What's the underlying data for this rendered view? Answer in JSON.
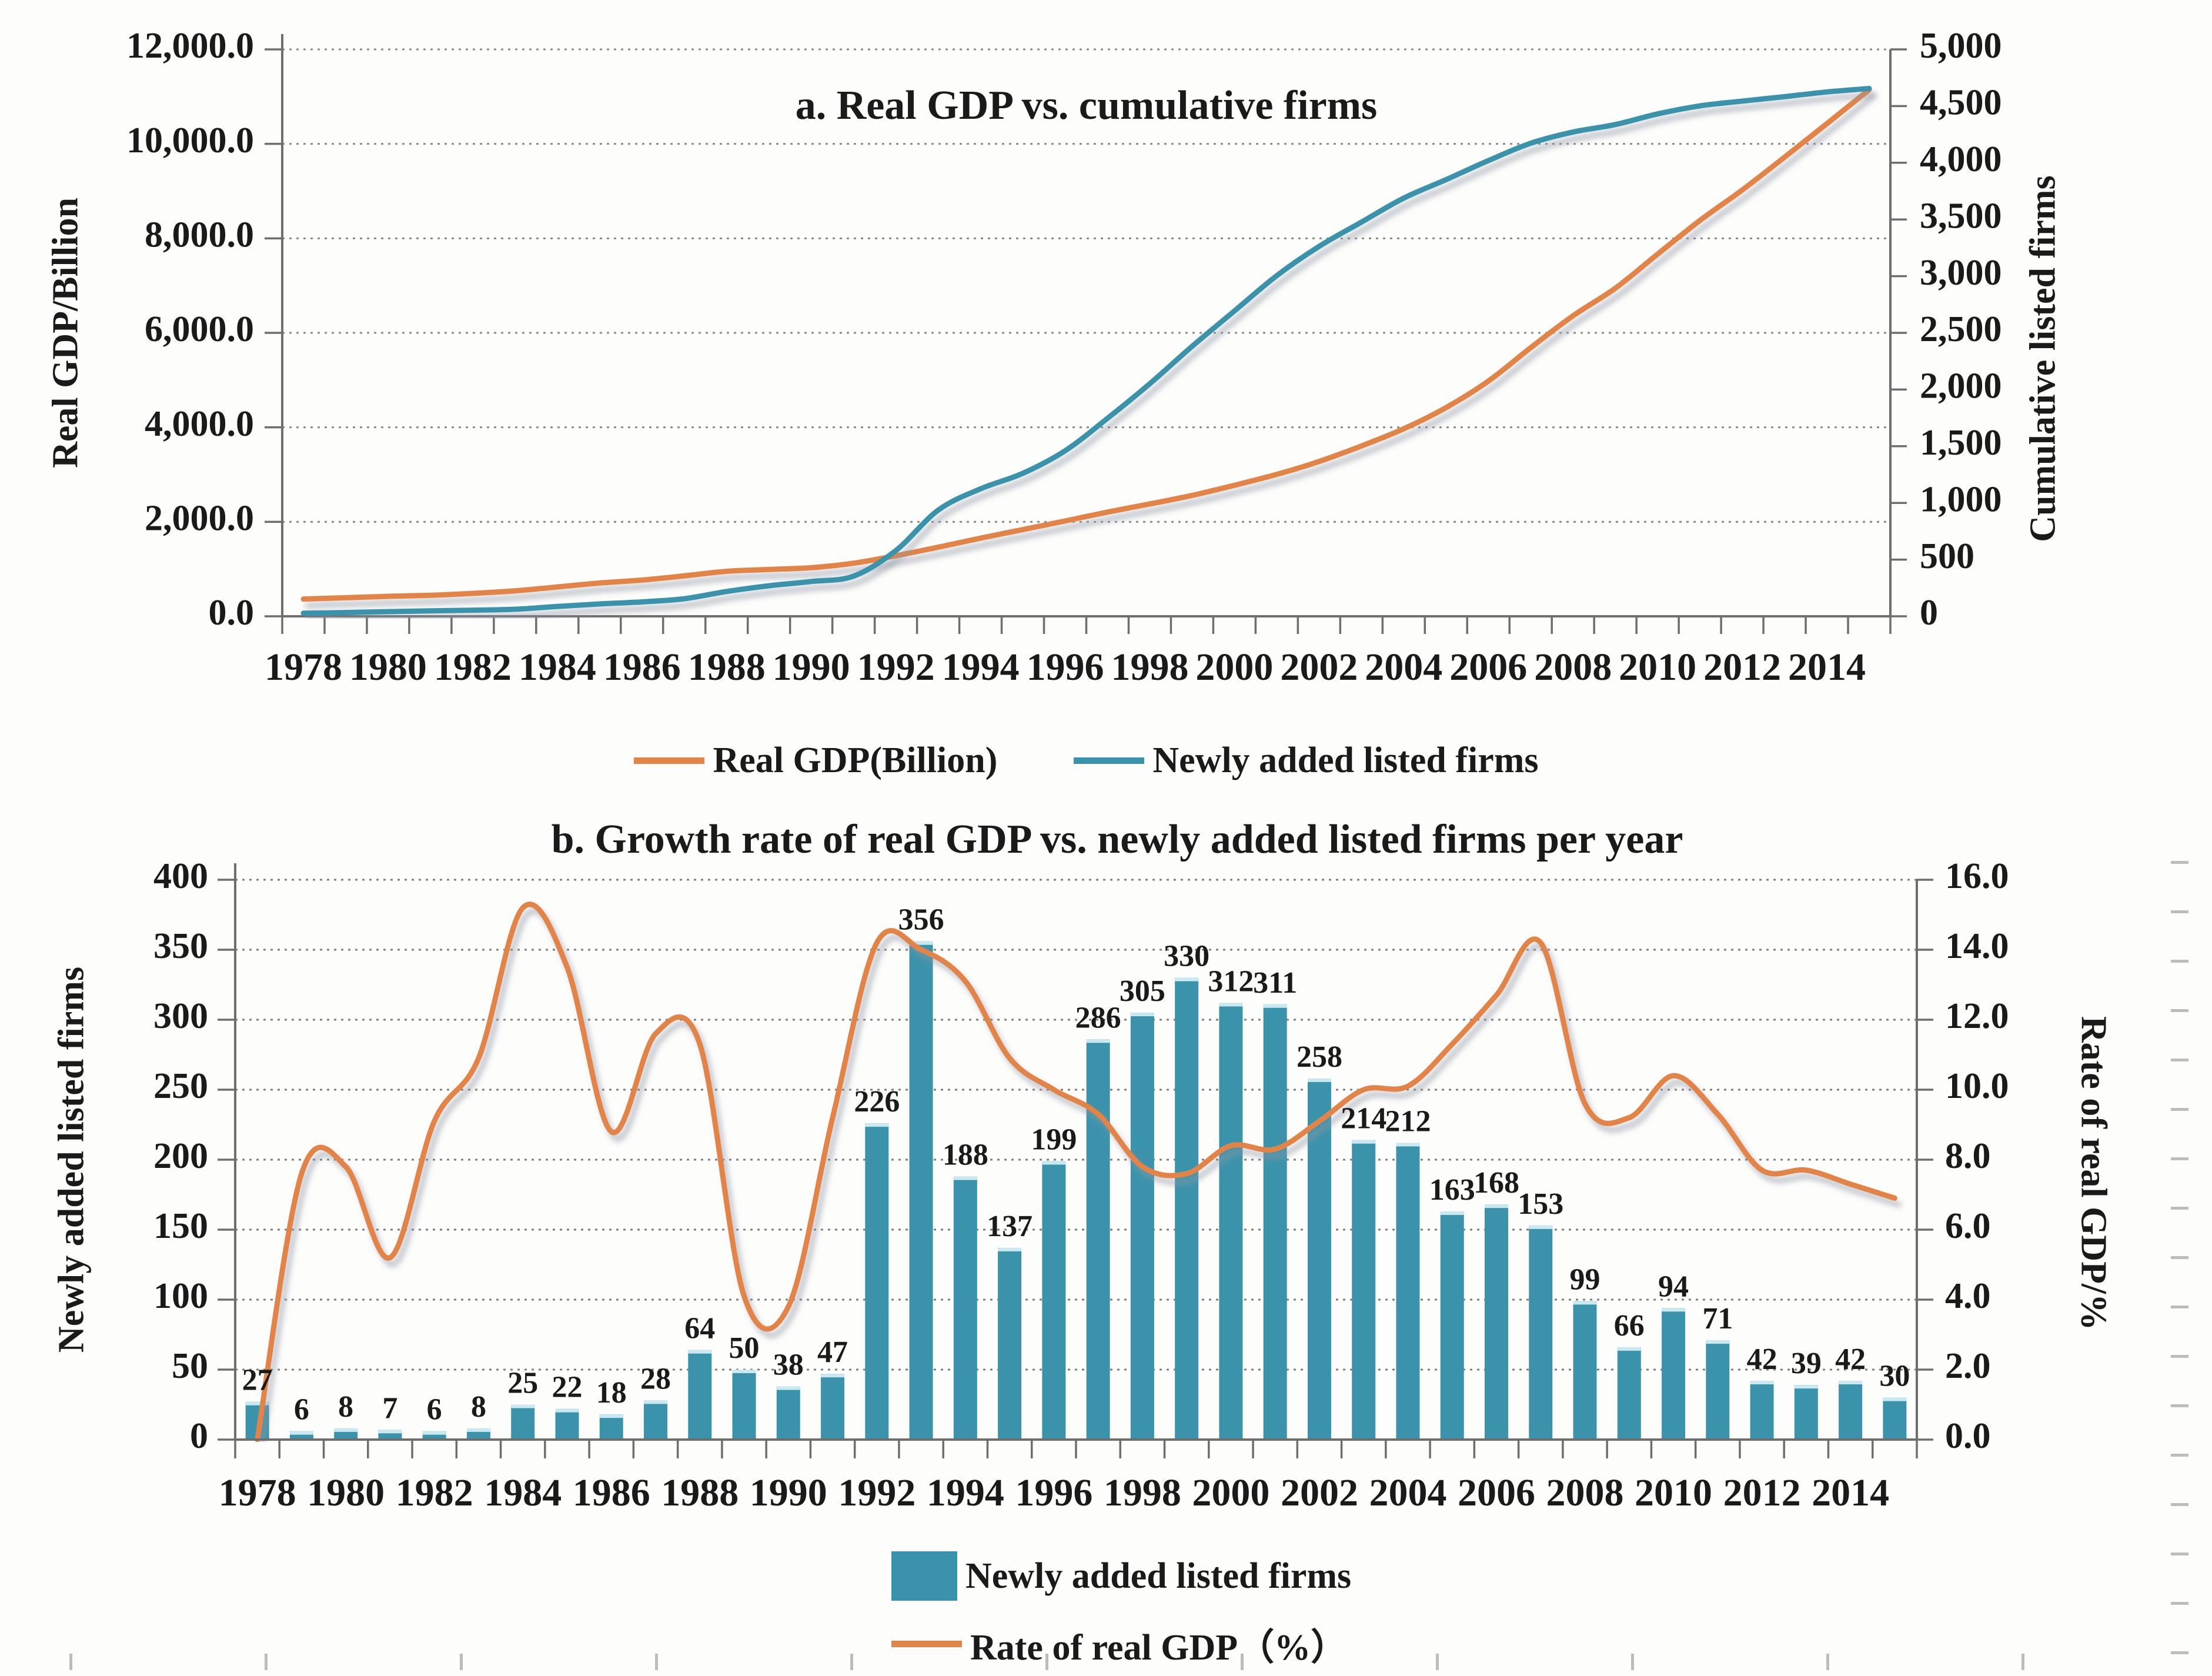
{
  "figure": {
    "panel_a": {
      "title": "a. Real GDP vs. cumulative firms",
      "y_left_title": "Real GDP/Billion",
      "y_right_title": "Cumulative listed firms",
      "legend": [
        {
          "label": "Real GDP(Billion)",
          "color": "#e28347",
          "swatch": "line"
        },
        {
          "label": "Newly added listed firms",
          "color": "#3b93ab",
          "swatch": "line"
        }
      ]
    },
    "panel_b": {
      "title": "b. Growth rate of real GDP vs. newly added listed firms per year",
      "y_left_title": "Newly added listed firms",
      "y_right_title": "Rate of real GDP/%",
      "legend": [
        {
          "label": "Newly added listed firms",
          "color": "#3b93ab",
          "swatch": "square"
        },
        {
          "label": "Rate of real GDP（%）",
          "color": "#e28347",
          "swatch": "line"
        }
      ]
    },
    "colors": {
      "teal": "#3b93ab",
      "orange": "#e28347",
      "bar_cap": "#c9e8f0"
    }
  },
  "chart_data": [
    {
      "id": "panel_a",
      "type": "line",
      "title": "a. Real GDP vs. cumulative firms",
      "x": [
        1978,
        1979,
        1980,
        1981,
        1982,
        1983,
        1984,
        1985,
        1986,
        1987,
        1988,
        1989,
        1990,
        1991,
        1992,
        1993,
        1994,
        1995,
        1996,
        1997,
        1998,
        1999,
        2000,
        2001,
        2002,
        2003,
        2004,
        2005,
        2006,
        2007,
        2008,
        2009,
        2010,
        2011,
        2012,
        2013,
        2014,
        2015
      ],
      "series": [
        {
          "name": "Real GDP(Billion)",
          "axis": "left",
          "color": "#e28347",
          "values": [
            365,
            393,
            423,
            445,
            486,
            539,
            621,
            705,
            767,
            856,
            952,
            991,
            1029,
            1124,
            1283,
            1463,
            1654,
            1835,
            2018,
            2206,
            2378,
            2559,
            2773,
            3004,
            3277,
            3605,
            3969,
            4417,
            4978,
            5685,
            6360,
            6944,
            7666,
            8379,
            9024,
            9719,
            10428,
            11148
          ]
        },
        {
          "name": "Newly added listed firms",
          "axis": "right",
          "color": "#3b93ab",
          "values": [
            27,
            33,
            41,
            48,
            54,
            62,
            87,
            109,
            127,
            155,
            219,
            269,
            307,
            354,
            580,
            936,
            1124,
            1261,
            1460,
            1746,
            2051,
            2381,
            2693,
            3004,
            3262,
            3476,
            3688,
            3851,
            4019,
            4172,
            4271,
            4337,
            4431,
            4502,
            4544,
            4583,
            4625,
            4655
          ]
        }
      ],
      "ylabel_left": "Real GDP/Billion",
      "ylabel_right": "Cumulative listed firms",
      "ylim_left": [
        0,
        12000
      ],
      "ylim_right": [
        0,
        5000
      ],
      "left_tick_labels": [
        "0.0",
        "2,000.0",
        "4,000.0",
        "6,000.0",
        "8,000.0",
        "10,000.0",
        "12,000.0"
      ],
      "right_tick_labels": [
        "0",
        "500",
        "1,000",
        "1,500",
        "2,000",
        "2,500",
        "3,000",
        "3,500",
        "4,000",
        "4,500",
        "5,000"
      ],
      "x_tick_labels": [
        "1978",
        "1980",
        "1982",
        "1984",
        "1986",
        "1988",
        "1990",
        "1992",
        "1994",
        "1996",
        "1998",
        "2000",
        "2002",
        "2004",
        "2006",
        "2008",
        "2010",
        "2012",
        "2014"
      ],
      "grid": "dotted-horizontal",
      "legend_position": "bottom"
    },
    {
      "id": "panel_b",
      "type": "bar+line",
      "title": "b. Growth rate of real GDP vs. newly added listed firms per year",
      "x": [
        1978,
        1979,
        1980,
        1981,
        1982,
        1983,
        1984,
        1985,
        1986,
        1987,
        1988,
        1989,
        1990,
        1991,
        1992,
        1993,
        1994,
        1995,
        1996,
        1997,
        1998,
        1999,
        2000,
        2001,
        2002,
        2003,
        2004,
        2005,
        2006,
        2007,
        2008,
        2009,
        2010,
        2011,
        2012,
        2013,
        2014,
        2015
      ],
      "bar_series": {
        "name": "Newly added listed firms",
        "axis": "left",
        "color": "#3b93ab",
        "values": [
          27,
          6,
          8,
          7,
          6,
          8,
          25,
          22,
          18,
          28,
          64,
          50,
          38,
          47,
          226,
          356,
          188,
          137,
          199,
          286,
          305,
          330,
          312,
          311,
          258,
          214,
          212,
          163,
          168,
          153,
          99,
          66,
          94,
          71,
          42,
          39,
          42,
          30
        ]
      },
      "line_series": {
        "name": "Rate of real GDP（%）",
        "axis": "right",
        "color": "#e28347",
        "values": [
          0.0,
          7.6,
          7.8,
          5.2,
          9.1,
          10.9,
          15.2,
          13.5,
          8.8,
          11.6,
          11.3,
          4.1,
          3.8,
          9.2,
          14.2,
          14.0,
          13.1,
          10.9,
          10.0,
          9.3,
          7.8,
          7.6,
          8.4,
          8.3,
          9.1,
          10.0,
          10.1,
          11.3,
          12.7,
          14.2,
          9.6,
          9.2,
          10.4,
          9.3,
          7.7,
          7.7,
          7.3,
          6.9
        ]
      },
      "ylabel_left": "Newly added listed firms",
      "ylabel_right": "Rate of real GDP/%",
      "ylim_left": [
        0,
        400
      ],
      "ylim_right": [
        0,
        16
      ],
      "left_tick_labels": [
        "0",
        "50",
        "100",
        "150",
        "200",
        "250",
        "300",
        "350",
        "400"
      ],
      "right_tick_labels": [
        "0.0",
        "2.0",
        "4.0",
        "6.0",
        "8.0",
        "10.0",
        "12.0",
        "14.0",
        "16.0"
      ],
      "x_tick_labels": [
        "1978",
        "1980",
        "1982",
        "1984",
        "1986",
        "1988",
        "1990",
        "1992",
        "1994",
        "1996",
        "1998",
        "2000",
        "2002",
        "2004",
        "2006",
        "2008",
        "2010",
        "2012",
        "2014"
      ],
      "bar_value_labels_shown": true,
      "grid": "dotted-horizontal",
      "legend_position": "bottom"
    }
  ]
}
